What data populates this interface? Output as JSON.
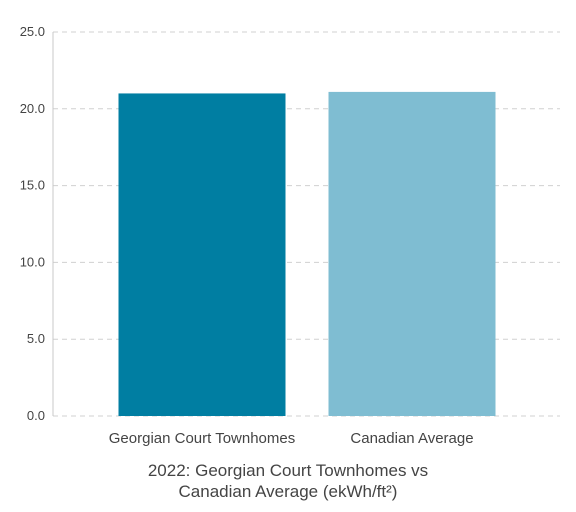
{
  "chart_data": {
    "type": "bar",
    "categories": [
      "Georgian Court Townhomes",
      "Canadian Average"
    ],
    "values": [
      21.0,
      21.1
    ],
    "colors": [
      "#007ea2",
      "#7fbdd2"
    ],
    "ylim": [
      0,
      25
    ],
    "yticks": [
      "0.0",
      "5.0",
      "10.0",
      "15.0",
      "20.0",
      "25.0"
    ],
    "ytick_values": [
      0,
      5,
      10,
      15,
      20,
      25
    ],
    "grid": true,
    "legend": "none",
    "xlabel": "",
    "ylabel": "",
    "title_line1": "2022: Georgian Court Townhomes vs",
    "title_line2": "Canadian Average (ekWh/ft²)"
  }
}
